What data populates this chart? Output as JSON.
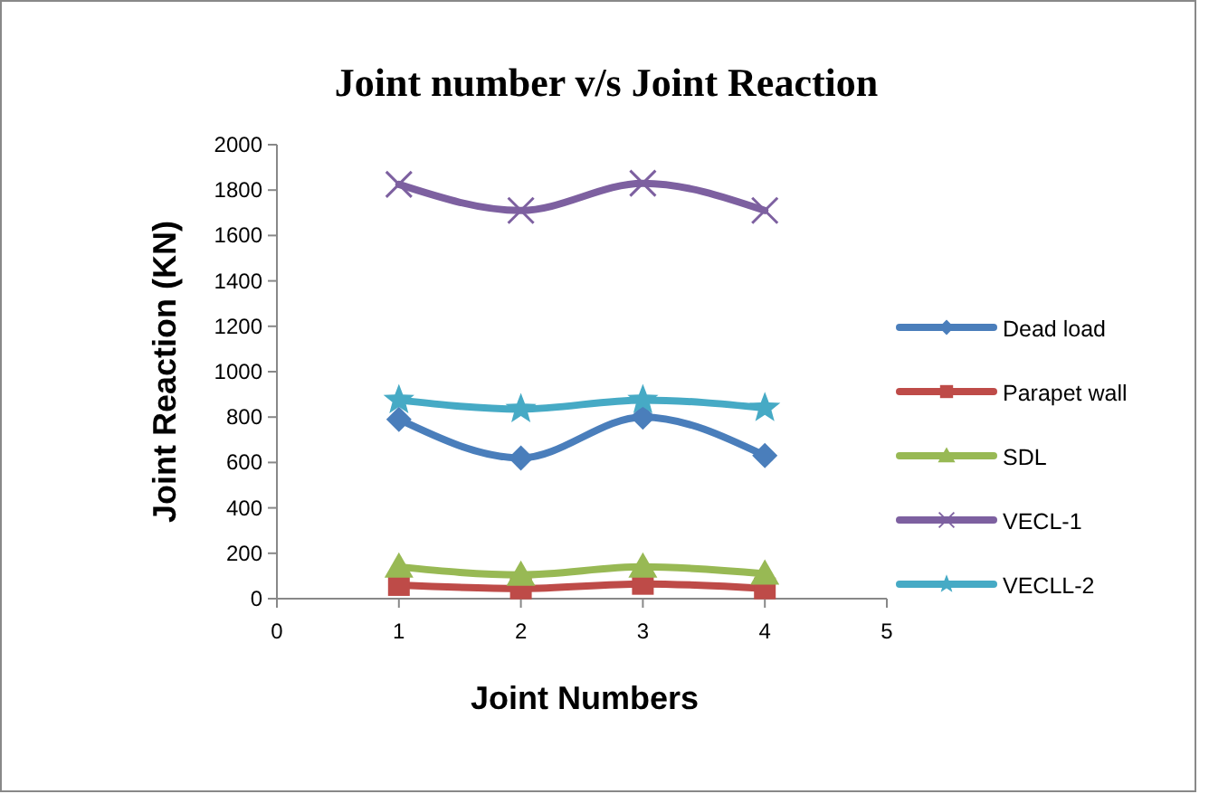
{
  "chart_data": {
    "type": "line",
    "title": "Joint number v/s Joint Reaction",
    "xlabel": "Joint Numbers",
    "ylabel": "Joint Reaction (KN)",
    "x": [
      1,
      2,
      3,
      4
    ],
    "xlim": [
      0,
      5
    ],
    "xticks": [
      0,
      1,
      2,
      3,
      4,
      5
    ],
    "ylim": [
      0,
      2000
    ],
    "yticks": [
      0,
      200,
      400,
      600,
      800,
      1000,
      1200,
      1400,
      1600,
      1800,
      2000
    ],
    "grid": false,
    "legend": "right",
    "series": [
      {
        "name": "Dead load",
        "color": "#4a7ebb",
        "marker": "diamond",
        "values": [
          790,
          620,
          800,
          630
        ]
      },
      {
        "name": "Parapet wall",
        "color": "#be4b48",
        "marker": "square",
        "values": [
          60,
          45,
          65,
          45
        ]
      },
      {
        "name": "SDL",
        "color": "#98b954",
        "marker": "triangle",
        "values": [
          140,
          105,
          140,
          110
        ]
      },
      {
        "name": "VECL-1",
        "color": "#7d60a0",
        "marker": "cross",
        "values": [
          1825,
          1710,
          1830,
          1710
        ]
      },
      {
        "name": "VECLL-2",
        "color": "#46aac5",
        "marker": "star",
        "values": [
          875,
          835,
          875,
          840
        ]
      }
    ]
  }
}
